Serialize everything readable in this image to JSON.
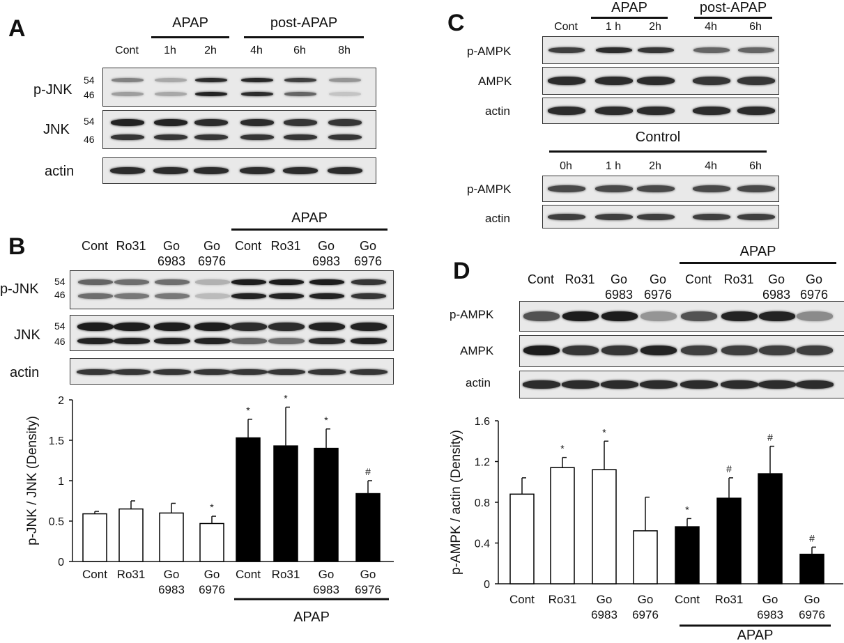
{
  "panelA": {
    "label": "A",
    "groups": [
      "APAP",
      "post-APAP"
    ],
    "lanes": [
      "Cont",
      "1h",
      "2h",
      "4h",
      "6h",
      "8h"
    ],
    "rows": [
      "p-JNK",
      "JNK",
      "actin"
    ],
    "kda": [
      "54",
      "46"
    ],
    "bands": {
      "pjnk54": [
        0.45,
        0.25,
        0.9,
        0.92,
        0.8,
        0.35
      ],
      "pjnk46": [
        0.3,
        0.25,
        0.95,
        0.9,
        0.6,
        0.1
      ],
      "jnk54": [
        0.95,
        0.95,
        0.9,
        0.9,
        0.85,
        0.85
      ],
      "jnk46": [
        0.85,
        0.85,
        0.85,
        0.85,
        0.85,
        0.85
      ],
      "actin": [
        0.9,
        0.9,
        0.9,
        0.9,
        0.9,
        0.9
      ]
    }
  },
  "panelB": {
    "label": "B",
    "group": "APAP",
    "lanes": [
      "Cont",
      "Ro31",
      "Go\n6983",
      "Go\n6976",
      "Cont",
      "Ro31",
      "Go\n6983",
      "Go\n6976"
    ],
    "rows": [
      "p-JNK",
      "JNK",
      "actin"
    ],
    "kda": [
      "54",
      "46"
    ],
    "bands": {
      "pjnk54": [
        0.6,
        0.55,
        0.55,
        0.2,
        0.98,
        0.98,
        0.98,
        0.85
      ],
      "pjnk46": [
        0.55,
        0.5,
        0.5,
        0.15,
        0.95,
        0.95,
        0.95,
        0.85
      ],
      "jnk54": [
        0.98,
        0.98,
        0.98,
        0.98,
        0.9,
        0.9,
        0.95,
        0.95
      ],
      "jnk46": [
        0.95,
        0.95,
        0.95,
        0.95,
        0.6,
        0.55,
        0.9,
        0.95
      ],
      "actin": [
        0.85,
        0.85,
        0.85,
        0.85,
        0.85,
        0.85,
        0.85,
        0.85
      ]
    },
    "chart_data": {
      "type": "bar",
      "categories": [
        "Cont",
        "Ro31",
        "Go\n6983",
        "Go\n6976",
        "Cont",
        "Ro31",
        "Go\n6983",
        "Go\n6976"
      ],
      "values": [
        0.59,
        0.65,
        0.6,
        0.47,
        1.53,
        1.43,
        1.4,
        0.84
      ],
      "errors": [
        0.03,
        0.1,
        0.12,
        0.09,
        0.23,
        0.48,
        0.24,
        0.16
      ],
      "marks": [
        "",
        "",
        "",
        "*",
        "*",
        "*",
        "*",
        "#"
      ],
      "filled": [
        false,
        false,
        false,
        false,
        true,
        true,
        true,
        true
      ],
      "ylabel": "p-JNK / JNK (Density)",
      "ylim": [
        0,
        2
      ],
      "yticks": [
        "0",
        "0.5",
        "1",
        "1.5",
        "2"
      ],
      "group_label": "APAP"
    }
  },
  "panelC": {
    "label": "C",
    "groups": [
      "APAP",
      "post-APAP"
    ],
    "lanes": [
      "Cont",
      "1 h",
      "2h",
      "4h",
      "6h"
    ],
    "rows": [
      "p-AMPK",
      "AMPK",
      "actin"
    ],
    "control_label": "Control",
    "control_lanes": [
      "0h",
      "1 h",
      "2h",
      "4h",
      "6h"
    ],
    "control_rows": [
      "p-AMPK",
      "actin"
    ],
    "bands": {
      "pampk": [
        0.8,
        0.9,
        0.85,
        0.6,
        0.6
      ],
      "ampk": [
        0.9,
        0.9,
        0.9,
        0.85,
        0.85
      ],
      "actin": [
        0.9,
        0.9,
        0.9,
        0.9,
        0.9
      ],
      "ctl_pampk": [
        0.75,
        0.75,
        0.75,
        0.75,
        0.75
      ],
      "ctl_actin": [
        0.8,
        0.8,
        0.8,
        0.8,
        0.8
      ]
    }
  },
  "panelD": {
    "label": "D",
    "group": "APAP",
    "lanes": [
      "Cont",
      "Ro31",
      "Go\n6983",
      "Go\n6976",
      "Cont",
      "Ro31",
      "Go\n6983",
      "Go\n6976"
    ],
    "rows": [
      "p-AMPK",
      "AMPK",
      "actin"
    ],
    "bands": {
      "pampk": [
        0.7,
        0.98,
        0.98,
        0.35,
        0.7,
        0.95,
        0.95,
        0.4
      ],
      "ampk": [
        0.98,
        0.85,
        0.85,
        0.95,
        0.8,
        0.8,
        0.8,
        0.8
      ],
      "actin": [
        0.9,
        0.9,
        0.9,
        0.9,
        0.9,
        0.9,
        0.9,
        0.9
      ]
    },
    "chart_data": {
      "type": "bar",
      "categories": [
        "Cont",
        "Ro31",
        "Go\n6983",
        "Go\n6976",
        "Cont",
        "Ro31",
        "Go\n6983",
        "Go\n6976"
      ],
      "values": [
        0.88,
        1.14,
        1.12,
        0.52,
        0.56,
        0.84,
        1.08,
        0.29
      ],
      "errors": [
        0.16,
        0.1,
        0.28,
        0.33,
        0.08,
        0.2,
        0.27,
        0.07
      ],
      "marks": [
        "",
        "*",
        "*",
        "",
        "*",
        "#",
        "#",
        "#"
      ],
      "filled": [
        false,
        false,
        false,
        false,
        true,
        true,
        true,
        true
      ],
      "ylabel": "p-AMPK / actin (Density)",
      "ylim": [
        0,
        1.6
      ],
      "yticks": [
        "0",
        "0.4",
        "0.8",
        "1.2",
        "1.6"
      ],
      "group_label": "APAP"
    }
  }
}
